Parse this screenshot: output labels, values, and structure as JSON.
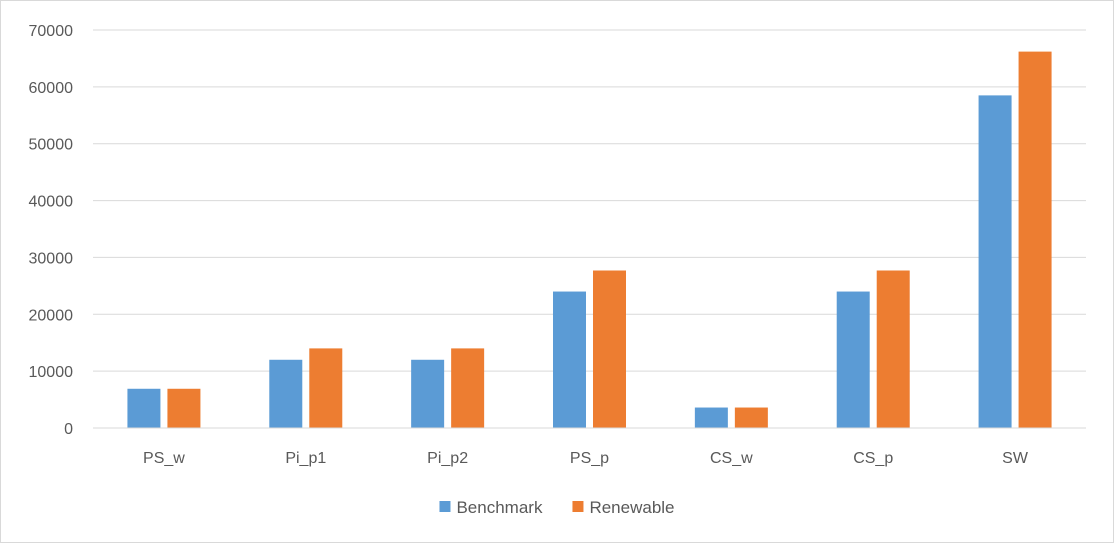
{
  "chart_data": {
    "type": "bar",
    "title": "",
    "xlabel": "",
    "ylabel": "",
    "categories": [
      "PS_w",
      "Pi_p1",
      "Pi_p2",
      "PS_p",
      "CS_w",
      "CS_p",
      "SW"
    ],
    "series": [
      {
        "name": "Benchmark",
        "color": "#5b9bd5",
        "values": [
          6900,
          12000,
          12000,
          24000,
          3600,
          24000,
          58500
        ]
      },
      {
        "name": "Renewable",
        "color": "#ed7d31",
        "values": [
          6900,
          14000,
          14000,
          27700,
          3600,
          27700,
          66200
        ]
      }
    ],
    "ylim": [
      0,
      70000
    ],
    "yticks": [
      0,
      10000,
      20000,
      30000,
      40000,
      50000,
      60000,
      70000
    ],
    "grid": true,
    "legend_position": "bottom-center"
  }
}
